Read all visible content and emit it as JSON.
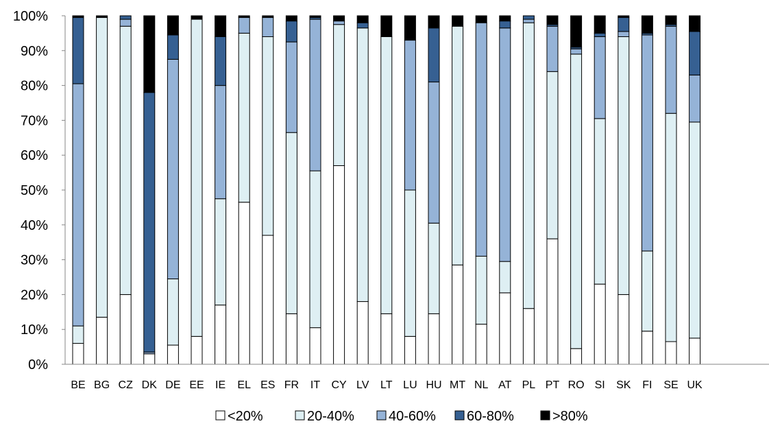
{
  "chart_data": {
    "type": "bar",
    "stacked": true,
    "percent": true,
    "categories": [
      "BE",
      "BG",
      "CZ",
      "DK",
      "DE",
      "EE",
      "IE",
      "EL",
      "ES",
      "FR",
      "IT",
      "CY",
      "LV",
      "LT",
      "LU",
      "HU",
      "MT",
      "NL",
      "AT",
      "PL",
      "PT",
      "RO",
      "SI",
      "SK",
      "FI",
      "SE",
      "UK"
    ],
    "series": [
      {
        "name": "<20%",
        "color": "#ffffff",
        "values": [
          6,
          13.5,
          20,
          3,
          5.5,
          8,
          17,
          46.5,
          37,
          14.5,
          10.5,
          57,
          18,
          14.5,
          8,
          14.5,
          28.5,
          11.5,
          20.5,
          16,
          36,
          4.5,
          23,
          20,
          9.5,
          6.5,
          7.5
        ]
      },
      {
        "name": "20-40%",
        "color": "#deeff3",
        "values": [
          5,
          86,
          77,
          0,
          19,
          91,
          30.5,
          48.5,
          57,
          52,
          45,
          40.5,
          78.5,
          79.5,
          42,
          26,
          68.5,
          19.5,
          9,
          82,
          48,
          84.5,
          47.5,
          74,
          23,
          65.5,
          62
        ]
      },
      {
        "name": "40-60%",
        "color": "#95b3d7",
        "values": [
          69.5,
          0,
          2,
          0.5,
          63,
          0,
          32.5,
          4.5,
          5.5,
          26,
          43.5,
          1,
          0,
          0,
          43,
          40.5,
          0,
          67,
          67,
          1,
          13,
          1.5,
          23.5,
          1.5,
          62,
          25,
          13.5
        ]
      },
      {
        "name": "60-80%",
        "color": "#366092",
        "values": [
          19,
          0,
          1,
          74.5,
          7,
          0,
          14,
          0,
          0,
          6,
          0.5,
          0,
          1.5,
          0,
          0,
          15.5,
          0,
          0,
          2,
          1,
          0.5,
          0.5,
          1,
          4,
          0.5,
          0.5,
          12.5
        ]
      },
      {
        "name": ">80%",
        "color": "#000000",
        "values": [
          0.5,
          0.5,
          0,
          22,
          5.5,
          1,
          6,
          0.5,
          0.5,
          1.5,
          0.5,
          1.5,
          2,
          6,
          7,
          3.5,
          3,
          2,
          1.5,
          0,
          2.5,
          9,
          5,
          0.5,
          5,
          2.5,
          4.5
        ]
      }
    ],
    "yticks": [
      "0%",
      "10%",
      "20%",
      "30%",
      "40%",
      "50%",
      "60%",
      "70%",
      "80%",
      "90%",
      "100%"
    ],
    "ylim": [
      0,
      100
    ],
    "grid": false,
    "legend_position": "bottom"
  }
}
